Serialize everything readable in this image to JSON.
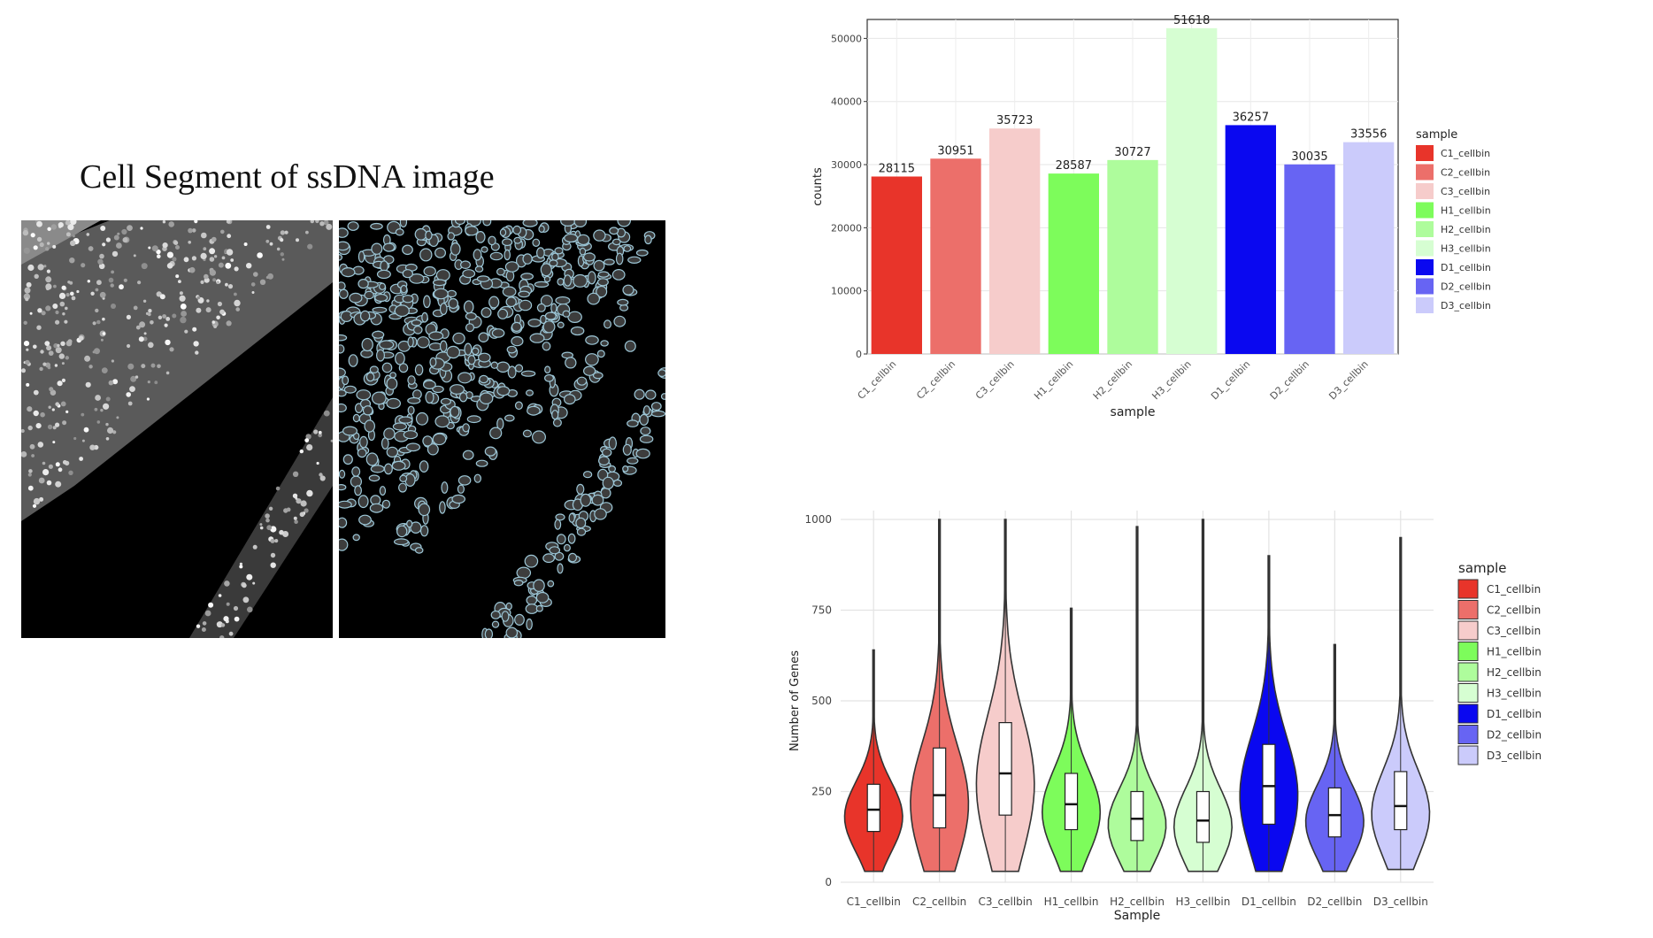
{
  "title": "Cell Segment of ssDNA image",
  "colors": {
    "C1_cellbin": "#e8342a",
    "C2_cellbin": "#ec6f6a",
    "C3_cellbin": "#f6cccb",
    "H1_cellbin": "#7dfc5b",
    "H2_cellbin": "#aefc9c",
    "H3_cellbin": "#d6fed2",
    "D1_cellbin": "#0a08f0",
    "D2_cellbin": "#6764f3",
    "D3_cellbin": "#cbcbfb"
  },
  "chart_data": [
    {
      "type": "bar",
      "categories": [
        "C1_cellbin",
        "C2_cellbin",
        "C3_cellbin",
        "H1_cellbin",
        "H2_cellbin",
        "H3_cellbin",
        "D1_cellbin",
        "D2_cellbin",
        "D3_cellbin"
      ],
      "values": [
        28115,
        30951,
        35723,
        28587,
        30727,
        51618,
        36257,
        30035,
        33556
      ],
      "title": "",
      "xlabel": "sample",
      "ylabel": "counts",
      "ylim": [
        0,
        53000
      ],
      "yticks": [
        0,
        10000,
        20000,
        30000,
        40000,
        50000
      ],
      "legend": {
        "title": "sample",
        "placement": "right"
      },
      "grid": true
    },
    {
      "type": "violin",
      "categories": [
        "C1_cellbin",
        "C2_cellbin",
        "C3_cellbin",
        "H1_cellbin",
        "H2_cellbin",
        "H3_cellbin",
        "D1_cellbin",
        "D2_cellbin",
        "D3_cellbin"
      ],
      "series": [
        {
          "q1": 140,
          "median": 200,
          "q3": 270,
          "min": 30,
          "max": 640
        },
        {
          "q1": 150,
          "median": 240,
          "q3": 370,
          "min": 30,
          "max": 1000
        },
        {
          "q1": 185,
          "median": 300,
          "q3": 440,
          "min": 30,
          "max": 1000
        },
        {
          "q1": 145,
          "median": 215,
          "q3": 300,
          "min": 30,
          "max": 755
        },
        {
          "q1": 115,
          "median": 175,
          "q3": 250,
          "min": 30,
          "max": 980
        },
        {
          "q1": 110,
          "median": 170,
          "q3": 250,
          "min": 30,
          "max": 1000
        },
        {
          "q1": 160,
          "median": 265,
          "q3": 380,
          "min": 30,
          "max": 900
        },
        {
          "q1": 125,
          "median": 185,
          "q3": 260,
          "min": 30,
          "max": 655
        },
        {
          "q1": 145,
          "median": 210,
          "q3": 305,
          "min": 35,
          "max": 950
        }
      ],
      "xlabel": "Sample",
      "ylabel": "Number of Genes",
      "ylim": [
        0,
        1000
      ],
      "yticks": [
        0,
        250,
        500,
        750,
        1000
      ],
      "legend": {
        "title": "sample",
        "placement": "right"
      },
      "grid": true
    }
  ]
}
